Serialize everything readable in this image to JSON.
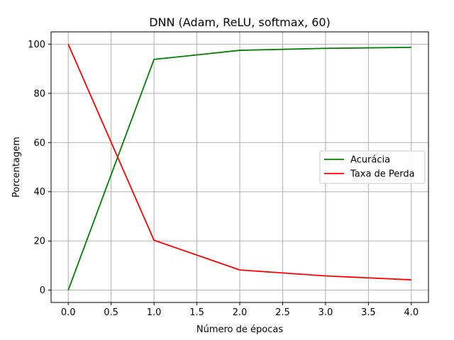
{
  "chart_data": {
    "type": "line",
    "title": "DNN (Adam, ReLU, softmax, 60)",
    "xlabel": "Número de épocas",
    "ylabel": "Porcentagem",
    "x": [
      0,
      1,
      2,
      3,
      4
    ],
    "xlim": [
      -0.2,
      4.2
    ],
    "ylim": [
      -5,
      105
    ],
    "xticks": [
      "0.0",
      "0.5",
      "1.0",
      "1.5",
      "2.0",
      "2.5",
      "3.0",
      "3.5",
      "4.0"
    ],
    "xtick_values": [
      0,
      0.5,
      1,
      1.5,
      2,
      2.5,
      3,
      3.5,
      4
    ],
    "yticks": [
      "0",
      "20",
      "40",
      "60",
      "80",
      "100"
    ],
    "ytick_values": [
      0,
      20,
      40,
      60,
      80,
      100
    ],
    "grid": true,
    "legend_position": "center-right",
    "series": [
      {
        "name": "Acurácia",
        "color": "#008000",
        "values": [
          0,
          93.8,
          97.5,
          98.3,
          98.7
        ]
      },
      {
        "name": "Taxa de Perda",
        "color": "#ff0000",
        "values": [
          100,
          20.3,
          8.2,
          5.8,
          4.2
        ]
      }
    ]
  }
}
